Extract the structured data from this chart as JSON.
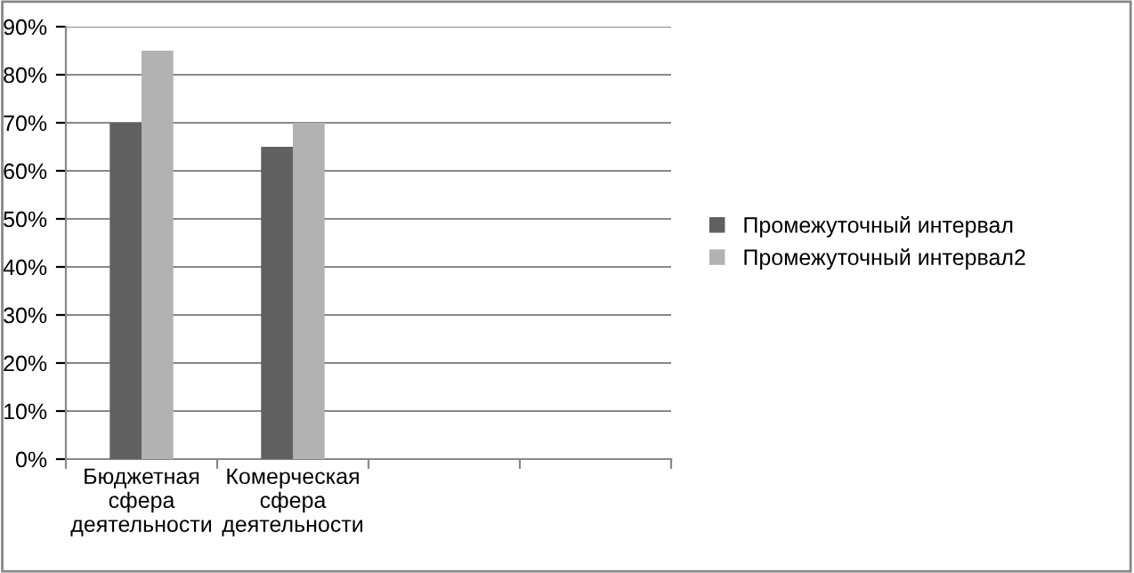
{
  "chart_data": {
    "type": "bar",
    "categories": [
      "Бюджетная сфера деятельности",
      "Комерческая сфера деятельности",
      null,
      null
    ],
    "series": [
      {
        "name": "Промежуточный интервал",
        "color": "#606060",
        "values": [
          70,
          65,
          null,
          null
        ]
      },
      {
        "name": "Промежуточный интервал2",
        "color": "#b2b2b2",
        "values": [
          85,
          70,
          null,
          null
        ]
      }
    ],
    "ylim": [
      0,
      90
    ],
    "yticks": [
      {
        "value": 0,
        "label": "0%"
      },
      {
        "value": 10,
        "label": "10%"
      },
      {
        "value": 20,
        "label": "20%"
      },
      {
        "value": 30,
        "label": "30%"
      },
      {
        "value": 40,
        "label": "40%"
      },
      {
        "value": 50,
        "label": "50%"
      },
      {
        "value": 60,
        "label": "60%"
      },
      {
        "value": 70,
        "label": "70%"
      },
      {
        "value": 80,
        "label": "80%"
      },
      {
        "value": 90,
        "label": "90%"
      }
    ],
    "grid": "y",
    "legend": "right"
  }
}
